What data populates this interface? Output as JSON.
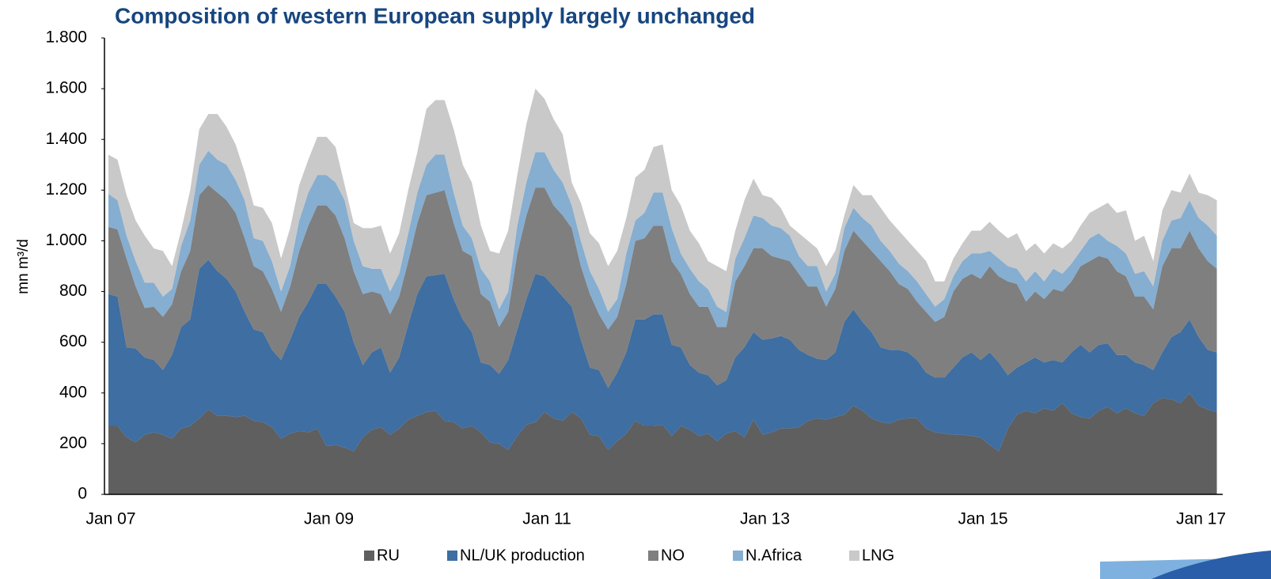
{
  "chart_data": {
    "type": "stacked_area",
    "title": "Composition of western European supply largely unchanged",
    "y_label": "mn m³/d",
    "categories": [
      "Jan 07",
      null,
      null,
      null,
      null,
      null,
      null,
      null,
      null,
      null,
      null,
      null,
      null,
      null,
      null,
      null,
      null,
      null,
      null,
      null,
      null,
      null,
      null,
      null,
      "Jan 09",
      null,
      null,
      null,
      null,
      null,
      null,
      null,
      null,
      null,
      null,
      null,
      null,
      null,
      null,
      null,
      null,
      null,
      null,
      null,
      null,
      null,
      null,
      null,
      "Jan 11",
      null,
      null,
      null,
      null,
      null,
      null,
      null,
      null,
      null,
      null,
      null,
      null,
      null,
      null,
      null,
      null,
      null,
      null,
      null,
      null,
      null,
      null,
      null,
      "Jan 13",
      null,
      null,
      null,
      null,
      null,
      null,
      null,
      null,
      null,
      null,
      null,
      null,
      null,
      null,
      null,
      null,
      null,
      null,
      null,
      null,
      null,
      null,
      null,
      "Jan 15",
      null,
      null,
      null,
      null,
      null,
      null,
      null,
      null,
      null,
      null,
      null,
      null,
      null,
      null,
      null,
      null,
      null,
      null,
      null,
      null,
      null,
      null,
      null,
      "Jan 17",
      null,
      null
    ],
    "series": [
      {
        "name": "RU",
        "color": "#5f5f5f",
        "values": [
          270,
          270,
          225,
          205,
          235,
          245,
          235,
          220,
          260,
          270,
          300,
          335,
          310,
          310,
          305,
          310,
          290,
          285,
          265,
          220,
          240,
          250,
          245,
          260,
          190,
          195,
          185,
          170,
          225,
          255,
          265,
          235,
          260,
          295,
          310,
          325,
          330,
          290,
          285,
          260,
          270,
          245,
          205,
          200,
          175,
          230,
          275,
          285,
          325,
          300,
          290,
          325,
          300,
          235,
          230,
          175,
          210,
          240,
          290,
          270,
          270,
          275,
          230,
          270,
          255,
          230,
          240,
          210,
          240,
          250,
          225,
          295,
          235,
          245,
          260,
          260,
          265,
          290,
          300,
          295,
          305,
          315,
          350,
          330,
          300,
          285,
          280,
          295,
          300,
          300,
          260,
          245,
          240,
          235,
          235,
          230,
          225,
          195,
          170,
          260,
          315,
          330,
          320,
          340,
          330,
          360,
          320,
          305,
          300,
          330,
          345,
          320,
          340,
          320,
          310,
          360,
          380,
          375,
          360,
          400,
          350,
          335,
          325
        ]
      },
      {
        "name": "NL/UK production",
        "color": "#3e6ea2",
        "values": [
          520,
          510,
          355,
          370,
          305,
          285,
          255,
          330,
          400,
          420,
          590,
          590,
          570,
          540,
          495,
          410,
          360,
          355,
          305,
          310,
          370,
          450,
          515,
          570,
          640,
          585,
          535,
          430,
          285,
          305,
          315,
          245,
          280,
          375,
          480,
          535,
          535,
          580,
          485,
          430,
          370,
          275,
          305,
          275,
          355,
          420,
          495,
          585,
          535,
          520,
          490,
          415,
          310,
          265,
          260,
          245,
          270,
          320,
          400,
          420,
          440,
          435,
          360,
          310,
          255,
          250,
          230,
          220,
          210,
          290,
          355,
          345,
          375,
          370,
          365,
          350,
          305,
          260,
          235,
          235,
          255,
          365,
          380,
          350,
          340,
          295,
          290,
          275,
          260,
          230,
          220,
          215,
          220,
          265,
          305,
          330,
          305,
          365,
          350,
          210,
          185,
          190,
          220,
          180,
          200,
          160,
          240,
          285,
          260,
          260,
          250,
          230,
          210,
          200,
          200,
          130,
          180,
          245,
          280,
          290,
          270,
          235,
          235
        ]
      },
      {
        "name": "NO",
        "color": "#7f7f7f",
        "values": [
          265,
          265,
          350,
          245,
          195,
          210,
          210,
          200,
          220,
          270,
          290,
          295,
          310,
          310,
          310,
          290,
          250,
          240,
          240,
          190,
          210,
          260,
          300,
          310,
          310,
          320,
          290,
          280,
          280,
          240,
          210,
          230,
          240,
          250,
          280,
          320,
          325,
          330,
          300,
          270,
          300,
          270,
          250,
          185,
          190,
          300,
          330,
          340,
          350,
          320,
          320,
          310,
          290,
          290,
          220,
          230,
          220,
          270,
          310,
          320,
          350,
          350,
          330,
          290,
          280,
          260,
          270,
          230,
          210,
          300,
          320,
          330,
          360,
          325,
          305,
          310,
          300,
          270,
          285,
          210,
          250,
          280,
          310,
          320,
          320,
          340,
          310,
          260,
          250,
          230,
          240,
          220,
          240,
          300,
          310,
          310,
          320,
          340,
          340,
          370,
          330,
          240,
          260,
          250,
          280,
          280,
          280,
          310,
          360,
          350,
          335,
          330,
          310,
          260,
          270,
          240,
          340,
          350,
          330,
          350,
          350,
          350,
          330
        ]
      },
      {
        "name": "N.Africa",
        "color": "#85aed1",
        "values": [
          130,
          115,
          90,
          100,
          100,
          95,
          80,
          60,
          100,
          120,
          120,
          135,
          130,
          140,
          130,
          150,
          110,
          120,
          110,
          80,
          80,
          120,
          130,
          120,
          120,
          130,
          150,
          120,
          110,
          90,
          100,
          90,
          90,
          110,
          120,
          120,
          150,
          140,
          120,
          100,
          70,
          100,
          80,
          70,
          80,
          110,
          130,
          140,
          140,
          140,
          130,
          90,
          100,
          90,
          100,
          70,
          70,
          120,
          80,
          100,
          130,
          130,
          130,
          80,
          100,
          100,
          70,
          80,
          60,
          90,
          110,
          130,
          120,
          120,
          120,
          100,
          70,
          80,
          80,
          60,
          60,
          90,
          90,
          90,
          100,
          80,
          80,
          80,
          70,
          80,
          70,
          60,
          70,
          60,
          70,
          80,
          100,
          60,
          70,
          60,
          60,
          80,
          80,
          70,
          80,
          70,
          70,
          60,
          90,
          90,
          70,
          100,
          90,
          90,
          100,
          90,
          100,
          110,
          120,
          120,
          120,
          140,
          130
        ]
      },
      {
        "name": "LNG",
        "color": "#c9c9c9",
        "values": [
          155,
          160,
          160,
          160,
          185,
          135,
          180,
          90,
          60,
          120,
          140,
          145,
          180,
          150,
          140,
          110,
          130,
          130,
          150,
          130,
          150,
          140,
          130,
          150,
          150,
          140,
          60,
          70,
          150,
          160,
          170,
          150,
          160,
          170,
          160,
          220,
          215,
          215,
          250,
          240,
          220,
          170,
          120,
          220,
          240,
          200,
          230,
          250,
          210,
          200,
          190,
          90,
          150,
          150,
          180,
          180,
          190,
          140,
          170,
          170,
          180,
          190,
          150,
          190,
          150,
          150,
          110,
          160,
          160,
          110,
          150,
          145,
          90,
          110,
          80,
          40,
          90,
          100,
          70,
          100,
          90,
          50,
          90,
          90,
          120,
          130,
          120,
          130,
          120,
          120,
          130,
          100,
          70,
          70,
          70,
          90,
          90,
          115,
          110,
          110,
          140,
          120,
          110,
          110,
          100,
          100,
          90,
          100,
          100,
          100,
          150,
          130,
          170,
          130,
          140,
          100,
          120,
          120,
          100,
          105,
          100,
          120,
          140
        ]
      }
    ],
    "ylim": [
      0,
      1800
    ],
    "yticks": [
      0,
      200,
      400,
      600,
      800,
      {
        "value": 1000,
        "label": "1.000"
      },
      {
        "value": 1200,
        "label": "1.200"
      },
      {
        "value": 1400,
        "label": "1.400"
      },
      {
        "value": 1600,
        "label": "1.600"
      },
      {
        "value": 1800,
        "label": "1.800"
      }
    ],
    "grid": false,
    "legend": "bottom"
  }
}
